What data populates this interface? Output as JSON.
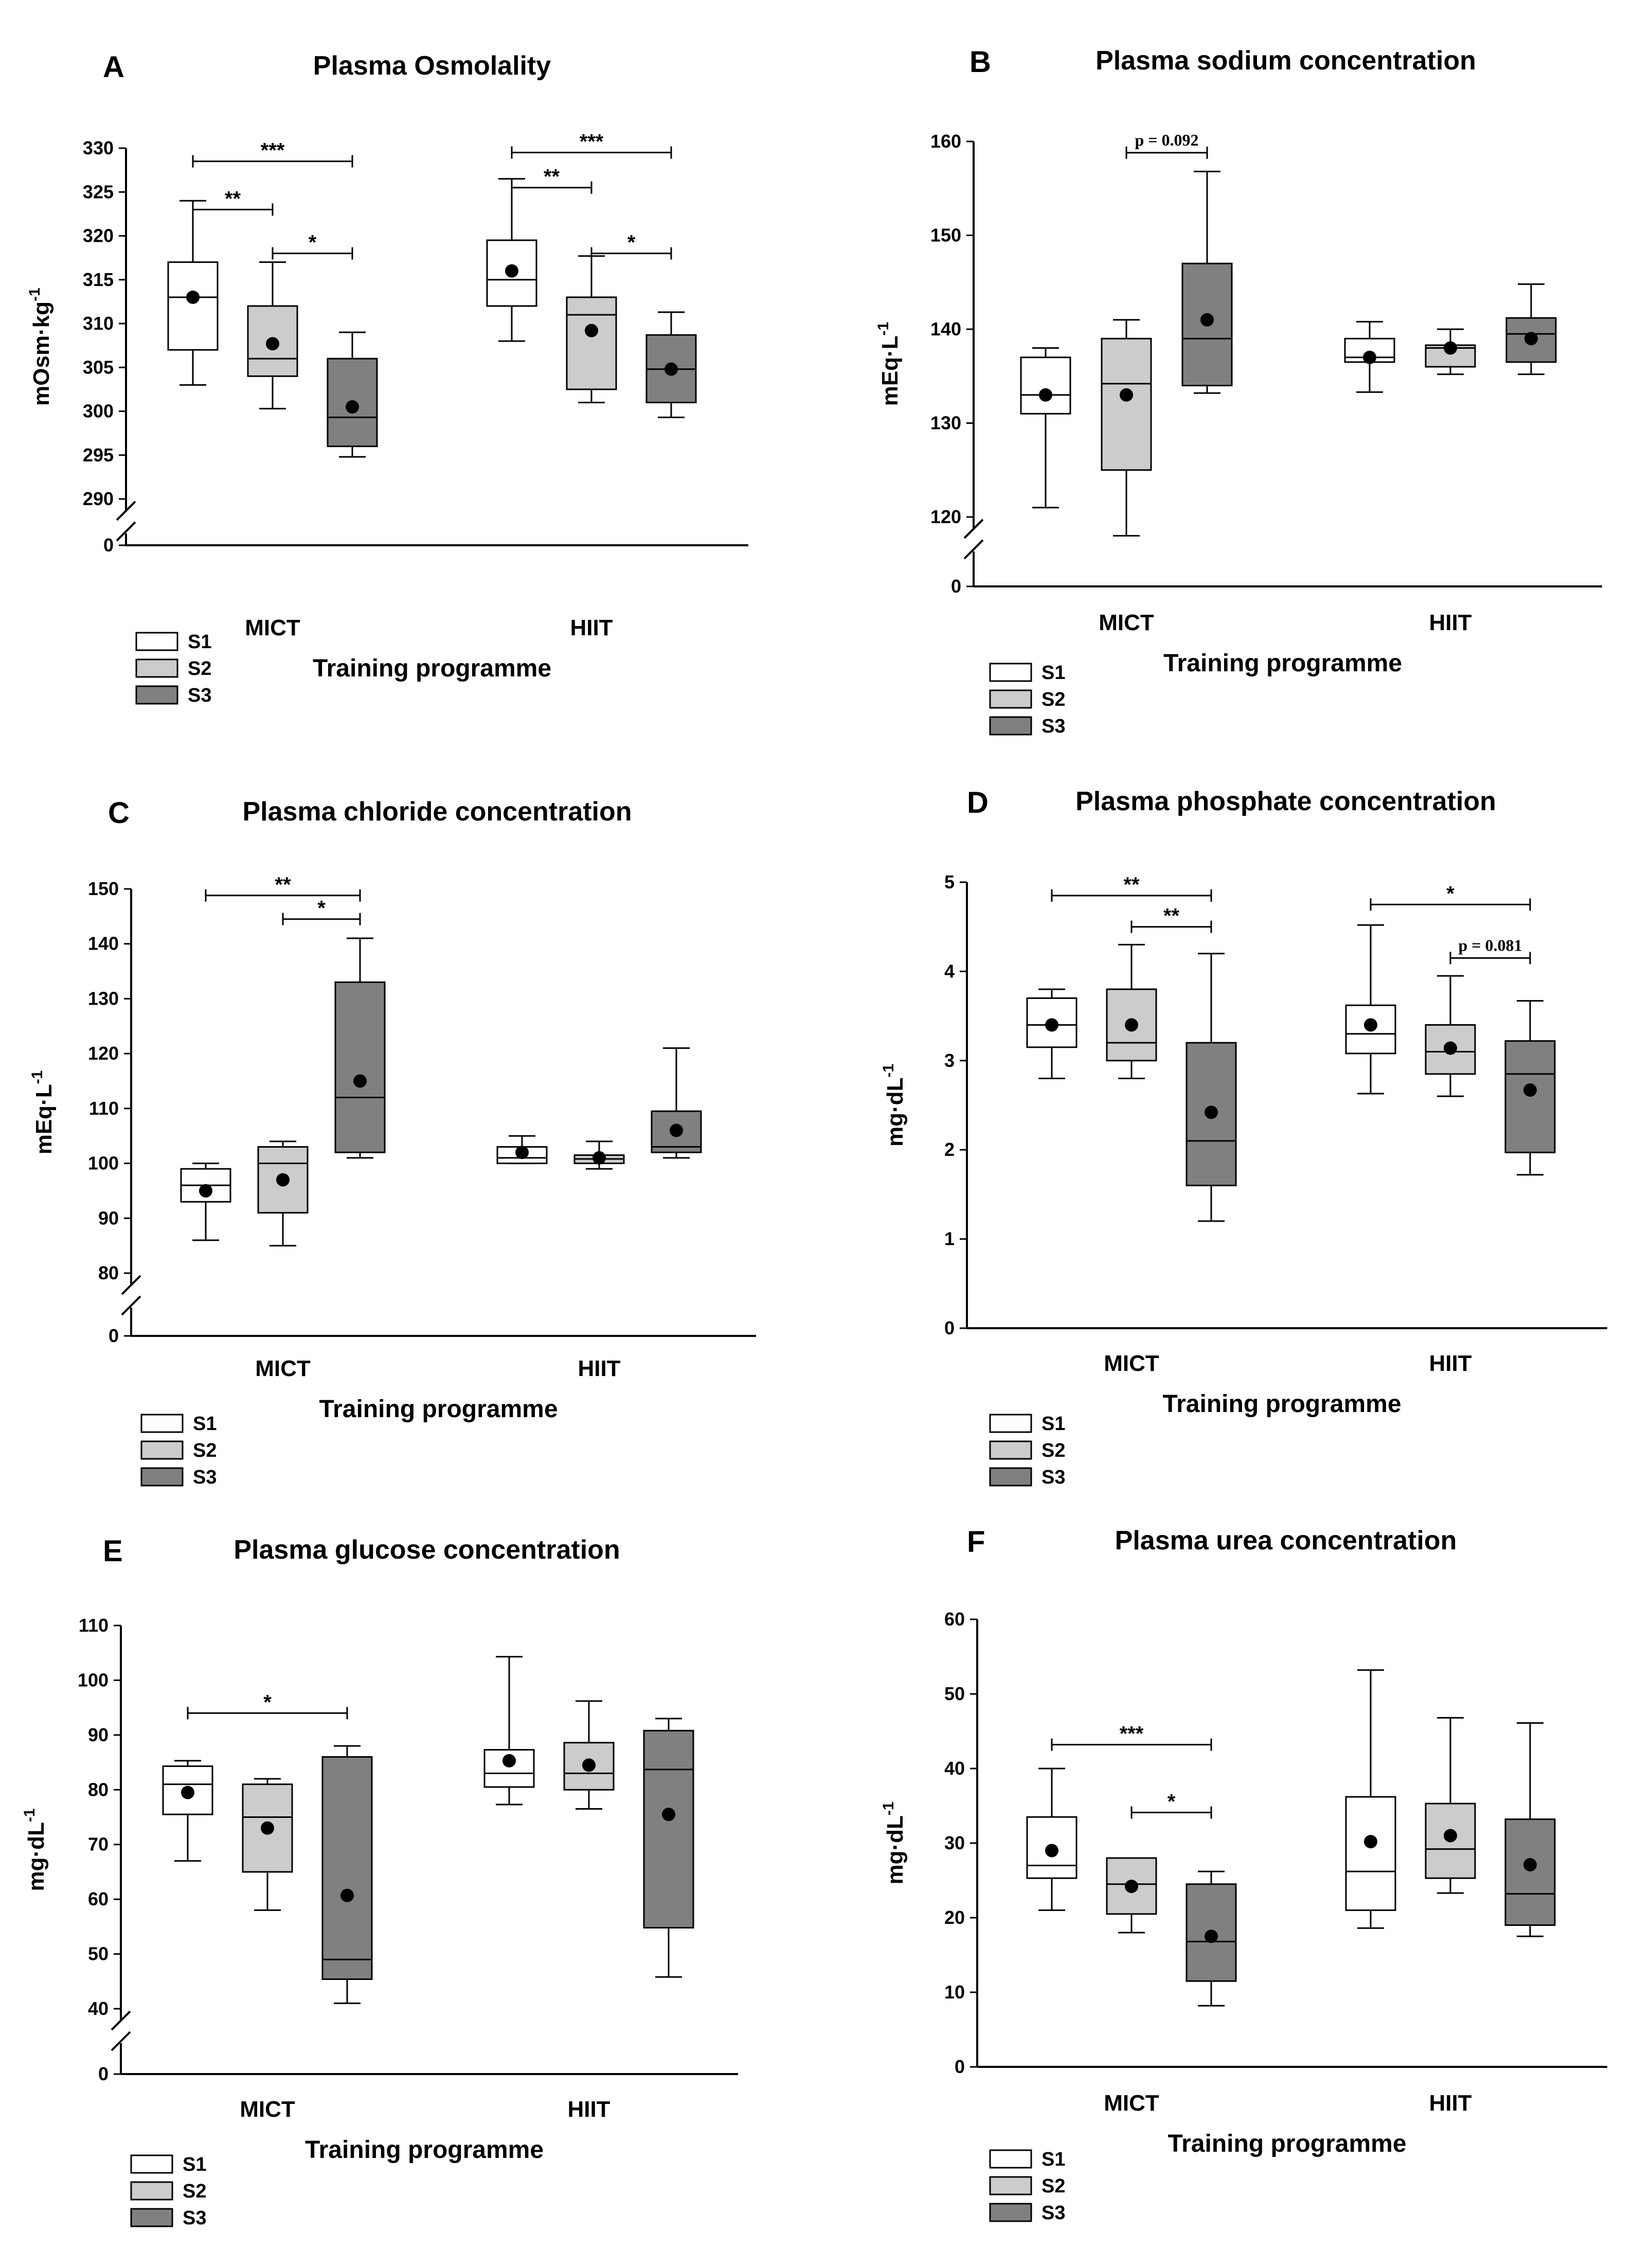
{
  "colors": {
    "S1": "#ffffff",
    "S2": "#cccccc",
    "S3": "#808080",
    "stroke": "#000000"
  },
  "chart_data": [
    {
      "letter": "A",
      "title": "Plasma Osmolality",
      "type": "boxplot",
      "ylabel": "mOsm·kg",
      "ylabel_sup": "-1",
      "xlabel": "Training programme",
      "categories": [
        "MICT",
        "HIIT"
      ],
      "legend": [
        "S1",
        "S2",
        "S3"
      ],
      "yticks": [
        290,
        295,
        300,
        305,
        310,
        315,
        320,
        325,
        330
      ],
      "zero_tick": "0",
      "axis_break": true,
      "ylim": [
        290,
        330
      ],
      "series": [
        {
          "name": "S1",
          "boxes": [
            {
              "min": 303,
              "q1": 307,
              "median": 313,
              "q3": 317,
              "max": 324,
              "mean": 313
            },
            {
              "min": 308,
              "q1": 312,
              "median": 315,
              "q3": 319.5,
              "max": 326.5,
              "mean": 316
            }
          ]
        },
        {
          "name": "S2",
          "boxes": [
            {
              "min": 300.3,
              "q1": 304,
              "median": 306,
              "q3": 312,
              "max": 317,
              "mean": 307.7
            },
            {
              "min": 301,
              "q1": 302.5,
              "median": 311,
              "q3": 313,
              "max": 317.7,
              "mean": 309.2
            }
          ]
        },
        {
          "name": "S3",
          "boxes": [
            {
              "min": 294.8,
              "q1": 296,
              "median": 299.3,
              "q3": 306,
              "max": 309,
              "mean": 300.5
            },
            {
              "min": 299.3,
              "q1": 301,
              "median": 304.8,
              "q3": 308.7,
              "max": 311.3,
              "mean": 304.8
            }
          ]
        }
      ],
      "annotations": [
        {
          "group": 0,
          "from": 0,
          "to": 2,
          "y": 328.5,
          "label": "***"
        },
        {
          "group": 0,
          "from": 0,
          "to": 1,
          "y": 323,
          "label": "**"
        },
        {
          "group": 0,
          "from": 1,
          "to": 2,
          "y": 318,
          "label": "*"
        },
        {
          "group": 1,
          "from": 0,
          "to": 2,
          "y": 329.5,
          "label": "***"
        },
        {
          "group": 1,
          "from": 0,
          "to": 1,
          "y": 325.5,
          "label": "**"
        },
        {
          "group": 1,
          "from": 1,
          "to": 2,
          "y": 318,
          "label": "*"
        }
      ]
    },
    {
      "letter": "B",
      "title": "Plasma sodium concentration",
      "type": "boxplot",
      "ylabel": "mEq·L",
      "ylabel_sup": "-1",
      "xlabel": "Training programme",
      "categories": [
        "MICT",
        "HIIT"
      ],
      "legend": [
        "S1",
        "S2",
        "S3"
      ],
      "yticks": [
        120,
        130,
        140,
        150,
        160
      ],
      "zero_tick": "0",
      "axis_break": true,
      "ylim": [
        115,
        160
      ],
      "series": [
        {
          "name": "S1",
          "boxes": [
            {
              "min": 121,
              "q1": 131,
              "median": 133,
              "q3": 137,
              "max": 138,
              "mean": 133
            },
            {
              "min": 133.3,
              "q1": 136.5,
              "median": 137,
              "q3": 139,
              "max": 140.8,
              "mean": 137
            }
          ]
        },
        {
          "name": "S2",
          "boxes": [
            {
              "min": 118,
              "q1": 125,
              "median": 134.2,
              "q3": 139,
              "max": 141,
              "mean": 133
            },
            {
              "min": 135.2,
              "q1": 136,
              "median": 138,
              "q3": 138.3,
              "max": 140,
              "mean": 138
            }
          ]
        },
        {
          "name": "S3",
          "boxes": [
            {
              "min": 133.2,
              "q1": 134,
              "median": 139,
              "q3": 147,
              "max": 156.8,
              "mean": 141
            },
            {
              "min": 135.2,
              "q1": 136.5,
              "median": 139.5,
              "q3": 141.2,
              "max": 144.8,
              "mean": 139
            }
          ]
        }
      ],
      "annotations": [
        {
          "group": 0,
          "from": 1,
          "to": 2,
          "y": 158.8,
          "label": "p = 0.092"
        }
      ]
    },
    {
      "letter": "C",
      "title": "Plasma chloride concentration",
      "type": "boxplot",
      "ylabel": "mEq·L",
      "ylabel_sup": "-1",
      "xlabel": "Training programme",
      "categories": [
        "MICT",
        "HIIT"
      ],
      "legend": [
        "S1",
        "S2",
        "S3"
      ],
      "yticks": [
        80,
        90,
        100,
        110,
        120,
        130,
        140,
        150
      ],
      "zero_tick": "0",
      "axis_break": true,
      "ylim": [
        75,
        150
      ],
      "series": [
        {
          "name": "S1",
          "boxes": [
            {
              "min": 86,
              "q1": 93,
              "median": 96,
              "q3": 99,
              "max": 100,
              "mean": 95
            },
            {
              "min": 100,
              "q1": 100,
              "median": 101,
              "q3": 103,
              "max": 105,
              "mean": 102
            }
          ]
        },
        {
          "name": "S2",
          "boxes": [
            {
              "min": 85,
              "q1": 91,
              "median": 100,
              "q3": 103,
              "max": 104,
              "mean": 97
            },
            {
              "min": 99,
              "q1": 100,
              "median": 100.8,
              "q3": 101.5,
              "max": 104,
              "mean": 101
            }
          ]
        },
        {
          "name": "S3",
          "boxes": [
            {
              "min": 101,
              "q1": 102,
              "median": 112,
              "q3": 133,
              "max": 141,
              "mean": 115
            },
            {
              "min": 101,
              "q1": 102,
              "median": 103,
              "q3": 109.5,
              "max": 121,
              "mean": 106
            }
          ]
        }
      ],
      "annotations": [
        {
          "group": 0,
          "from": 0,
          "to": 2,
          "y": 148.8,
          "label": "**"
        },
        {
          "group": 0,
          "from": 1,
          "to": 2,
          "y": 144.5,
          "label": "*"
        }
      ]
    },
    {
      "letter": "D",
      "title": "Plasma phosphate concentration",
      "type": "boxplot",
      "ylabel": "mg·dL",
      "ylabel_sup": "-1",
      "xlabel": "Training programme",
      "categories": [
        "MICT",
        "HIIT"
      ],
      "legend": [
        "S1",
        "S2",
        "S3"
      ],
      "yticks": [
        0,
        1,
        2,
        3,
        4,
        5
      ],
      "zero_tick": "",
      "axis_break": false,
      "ylim": [
        0,
        5
      ],
      "series": [
        {
          "name": "S1",
          "boxes": [
            {
              "min": 2.8,
              "q1": 3.15,
              "median": 3.4,
              "q3": 3.7,
              "max": 3.8,
              "mean": 3.4
            },
            {
              "min": 2.63,
              "q1": 3.08,
              "median": 3.3,
              "q3": 3.62,
              "max": 4.52,
              "mean": 3.4
            }
          ]
        },
        {
          "name": "S2",
          "boxes": [
            {
              "min": 2.8,
              "q1": 3.0,
              "median": 3.2,
              "q3": 3.8,
              "max": 4.3,
              "mean": 3.4
            },
            {
              "min": 2.6,
              "q1": 2.85,
              "median": 3.1,
              "q3": 3.4,
              "max": 3.95,
              "mean": 3.14
            }
          ]
        },
        {
          "name": "S3",
          "boxes": [
            {
              "min": 1.2,
              "q1": 1.6,
              "median": 2.1,
              "q3": 3.2,
              "max": 4.2,
              "mean": 2.42
            },
            {
              "min": 1.72,
              "q1": 1.97,
              "median": 2.85,
              "q3": 3.22,
              "max": 3.67,
              "mean": 2.67
            }
          ]
        }
      ],
      "annotations": [
        {
          "group": 0,
          "from": 0,
          "to": 2,
          "y": 4.85,
          "label": "**"
        },
        {
          "group": 0,
          "from": 1,
          "to": 2,
          "y": 4.5,
          "label": "**"
        },
        {
          "group": 1,
          "from": 0,
          "to": 2,
          "y": 4.75,
          "label": "*"
        },
        {
          "group": 1,
          "from": 1,
          "to": 2,
          "y": 4.15,
          "label": "p = 0.081"
        }
      ]
    },
    {
      "letter": "E",
      "title": "Plasma glucose concentration",
      "type": "boxplot",
      "ylabel": "mg·dL",
      "ylabel_sup": "-1",
      "xlabel": "Training programme",
      "categories": [
        "MICT",
        "HIIT"
      ],
      "legend": [
        "S1",
        "S2",
        "S3"
      ],
      "yticks": [
        40,
        50,
        60,
        70,
        80,
        90,
        100,
        110
      ],
      "zero_tick": "0",
      "axis_break": true,
      "ylim": [
        35,
        110
      ],
      "series": [
        {
          "name": "S1",
          "boxes": [
            {
              "min": 67,
              "q1": 75.5,
              "median": 81,
              "q3": 84.3,
              "max": 85.3,
              "mean": 79.5
            },
            {
              "min": 77.3,
              "q1": 80.5,
              "median": 83,
              "q3": 87.3,
              "max": 104.3,
              "mean": 85.3
            }
          ]
        },
        {
          "name": "S2",
          "boxes": [
            {
              "min": 58,
              "q1": 65,
              "median": 75,
              "q3": 81,
              "max": 82,
              "mean": 73
            },
            {
              "min": 76.5,
              "q1": 80,
              "median": 83,
              "q3": 88.6,
              "max": 96.2,
              "mean": 84.5
            }
          ]
        },
        {
          "name": "S3",
          "boxes": [
            {
              "min": 41,
              "q1": 45.4,
              "median": 49,
              "q3": 86,
              "max": 88,
              "mean": 60.7
            },
            {
              "min": 45.8,
              "q1": 54.8,
              "median": 83.7,
              "q3": 90.8,
              "max": 93,
              "mean": 75.5
            }
          ]
        }
      ],
      "annotations": [
        {
          "group": 0,
          "from": 0,
          "to": 2,
          "y": 94,
          "label": "*"
        }
      ]
    },
    {
      "letter": "F",
      "title": "Plasma urea concentration",
      "type": "boxplot",
      "ylabel": "mg·dL",
      "ylabel_sup": "-1",
      "xlabel": "Training programme",
      "categories": [
        "MICT",
        "HIIT"
      ],
      "legend": [
        "S1",
        "S2",
        "S3"
      ],
      "yticks": [
        0,
        10,
        20,
        30,
        40,
        50,
        60
      ],
      "zero_tick": "",
      "axis_break": false,
      "ylim": [
        0,
        60
      ],
      "series": [
        {
          "name": "S1",
          "boxes": [
            {
              "min": 21,
              "q1": 25.3,
              "median": 27,
              "q3": 33.5,
              "max": 40,
              "mean": 29
            },
            {
              "min": 18.6,
              "q1": 21,
              "median": 26.2,
              "q3": 36.2,
              "max": 53.2,
              "mean": 30.2
            }
          ]
        },
        {
          "name": "S2",
          "boxes": [
            {
              "min": 18,
              "q1": 20.5,
              "median": 24.5,
              "q3": 28,
              "max": 28,
              "mean": 24.2
            },
            {
              "min": 23.3,
              "q1": 25.3,
              "median": 29.2,
              "q3": 35.3,
              "max": 46.8,
              "mean": 31
            }
          ]
        },
        {
          "name": "S3",
          "boxes": [
            {
              "min": 8.2,
              "q1": 11.5,
              "median": 16.8,
              "q3": 24.5,
              "max": 26.2,
              "mean": 17.5
            },
            {
              "min": 17.5,
              "q1": 19,
              "median": 23.2,
              "q3": 33.2,
              "max": 46.1,
              "mean": 27.1
            }
          ]
        }
      ],
      "annotations": [
        {
          "group": 0,
          "from": 0,
          "to": 2,
          "y": 43.2,
          "label": "***"
        },
        {
          "group": 0,
          "from": 1,
          "to": 2,
          "y": 34.1,
          "label": "*"
        }
      ]
    }
  ]
}
